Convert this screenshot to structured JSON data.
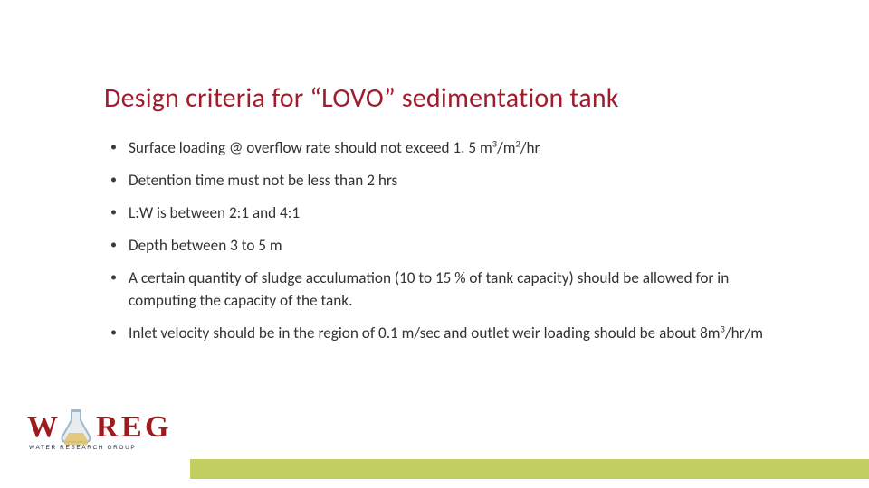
{
  "title": "Design criteria for “LOVO” sedimentation tank",
  "bullets": [
    "Surface loading @ overflow rate should not exceed 1. 5 m<sup>3</sup>/m<sup>2</sup>/hr",
    "Detention time must not be less than 2 hrs",
    "L:W is between 2:1 and 4:1",
    "Depth between 3 to 5 m",
    "A certain quantity of sludge acculumation  (10 to 15 % of tank capacity) should be allowed for in computing the capacity of the tank.",
    "Inlet velocity should be in the region of 0.1 m/sec and outlet weir loading should be about 8m<sup>3</sup>/hr/m"
  ],
  "colors": {
    "title": "#a01c2c",
    "text": "#323232",
    "band": "#c2ce5f",
    "logo_red": "#9b1b1f",
    "logo_dark": "#1b2a44",
    "flask_blue": "#9bb8cc",
    "flask_fill": "#e1c26a"
  },
  "logo": {
    "subtitle": "WATER  RESEARCH  GROUP",
    "letters": [
      "W",
      "R",
      "E",
      "G"
    ]
  }
}
